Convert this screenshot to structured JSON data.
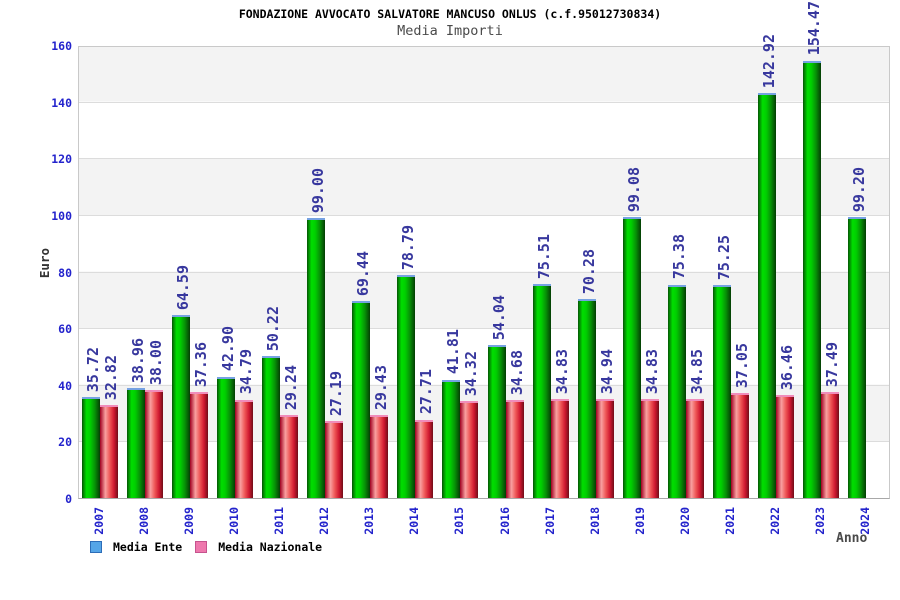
{
  "header": {
    "title": "FONDAZIONE AVVOCATO SALVATORE MANCUSO ONLUS (c.f.95012730834)",
    "subtitle": "Media Importi"
  },
  "legend": {
    "items": [
      {
        "label": "Media Ente",
        "swatch_color": "#55a5e7",
        "swatch_border": "#2d6db8"
      },
      {
        "label": "Media Nazionale",
        "swatch_color": "#ee78ad",
        "swatch_border": "#c6538e"
      }
    ]
  },
  "colors": {
    "bar_green": "#00cc00",
    "bar_red": "#e04040",
    "green_cap": "#76a2e2",
    "red_cap": "#f08cba",
    "tick_blue": "#2323cc",
    "value_label_blue": "#38389e",
    "band_gray": "#f3f3f3"
  },
  "chart_data": {
    "type": "bar",
    "title": "FONDAZIONE AVVOCATO SALVATORE MANCUSO ONLUS (c.f.95012730834)",
    "subtitle": "Media Importi",
    "xlabel": "Anno",
    "ylabel": "Euro",
    "ylim": [
      0,
      160
    ],
    "ytick_step": 20,
    "y_ticks": [
      "0",
      "20",
      "40",
      "60",
      "80",
      "100",
      "120",
      "140",
      "160"
    ],
    "grid": "horizontal",
    "legend_position": "bottom-left",
    "bar_value_labels_rotated": true,
    "categories": [
      "2007",
      "2008",
      "2009",
      "2010",
      "2011",
      "2012",
      "2013",
      "2014",
      "2015",
      "2016",
      "2017",
      "2018",
      "2019",
      "2020",
      "2021",
      "2022",
      "2023",
      "2024"
    ],
    "series": [
      {
        "name": "Media Ente",
        "color": "green",
        "values": [
          35.72,
          38.96,
          64.59,
          42.9,
          50.22,
          99.0,
          69.44,
          78.79,
          41.81,
          54.04,
          75.51,
          70.28,
          99.08,
          75.38,
          75.25,
          142.92,
          154.47,
          99.2
        ],
        "labels": [
          "35.72",
          "38.96",
          "64.59",
          "42.90",
          "50.22",
          "99.00",
          "69.44",
          "78.79",
          "41.81",
          "54.04",
          "75.51",
          "70.28",
          "99.08",
          "75.38",
          "75.25",
          "142.92",
          "154.47",
          "99.20"
        ]
      },
      {
        "name": "Media Nazionale",
        "color": "red",
        "values": [
          32.82,
          38.0,
          37.36,
          34.79,
          29.24,
          27.19,
          29.43,
          27.71,
          34.32,
          34.68,
          34.83,
          34.94,
          34.83,
          34.85,
          37.05,
          36.46,
          37.49,
          null
        ],
        "labels": [
          "32.82",
          "38.00",
          "37.36",
          "34.79",
          "29.24",
          "27.19",
          "29.43",
          "27.71",
          "34.32",
          "34.68",
          "34.83",
          "34.94",
          "34.83",
          "34.85",
          "37.05",
          "36.46",
          "37.49",
          null
        ]
      }
    ]
  }
}
